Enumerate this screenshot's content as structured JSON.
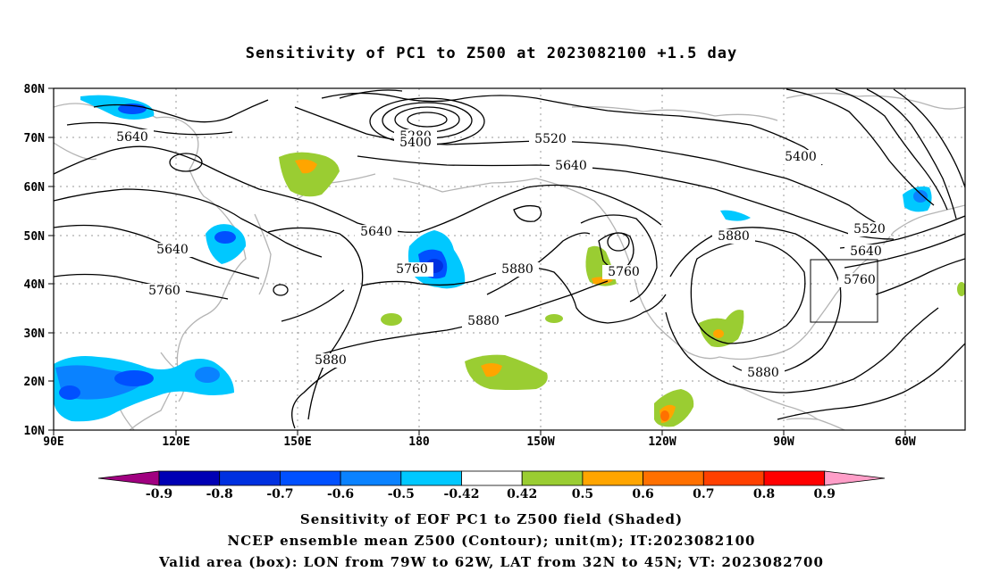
{
  "title": "Sensitivity of PC1 to Z500 at 2023082100 +1.5 day",
  "lat_ticks": [
    "80N",
    "70N",
    "60N",
    "50N",
    "40N",
    "30N",
    "20N",
    "10N"
  ],
  "lon_ticks": [
    "90E",
    "120E",
    "150E",
    "180",
    "150W",
    "120W",
    "90W",
    "60W"
  ],
  "contour_labels": {
    "c5640_nw": "5640",
    "c5280": "5280",
    "c5400_n": "5400",
    "c5520_n": "5520",
    "c5640_n": "5640",
    "c5400_ne": "5400",
    "c5640_w": "5640",
    "c5640_mid": "5640",
    "c5760_mid": "5760",
    "c5880_mid": "5880",
    "c5760_w": "5760",
    "c5760_us": "5760",
    "c5880_us": "5880",
    "c5520_e": "5520",
    "c5640_e": "5640",
    "c5760_e": "5760",
    "c5880_pac": "5880",
    "c5880_sw": "5880",
    "c5880_gulf": "5880"
  },
  "colorbar": {
    "labels": [
      "-0.9",
      "-0.8",
      "-0.7",
      "-0.6",
      "-0.5",
      "-0.42",
      "0.42",
      "0.5",
      "0.6",
      "0.7",
      "0.8",
      "0.9"
    ],
    "colors": [
      "#a00080",
      "#0000b4",
      "#0030e0",
      "#0050ff",
      "#0a82ff",
      "#00c8ff",
      "#ffffff",
      "#9acd32",
      "#ffa500",
      "#ff7000",
      "#ff4000",
      "#ff0000",
      "#ff9ec8"
    ]
  },
  "captions": {
    "line1": "Sensitivity of EOF PC1 to Z500 field (Shaded)",
    "line2": "NCEP ensemble mean Z500 (Contour); unit(m); IT:2023082100",
    "line3": "Valid area (box): LON from 79W to 62W, LAT from 32N to 45N; VT: 2023082700"
  }
}
